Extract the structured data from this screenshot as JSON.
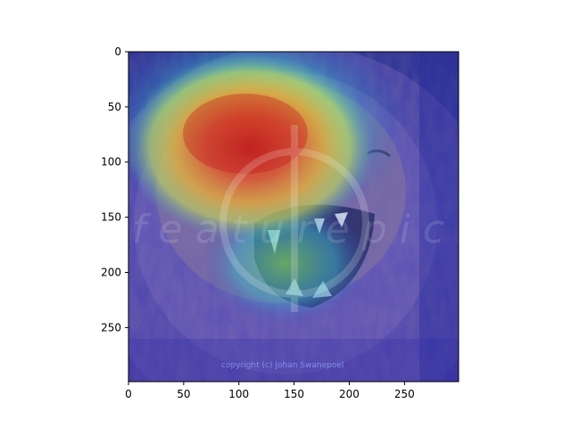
{
  "figure": {
    "image_description_icon": "lion-face-photo-icon",
    "overlay": "heatmap",
    "colormap": "jet",
    "watermark_text": "featurepics",
    "copyright_text": "copyright (c) Johan Swanepoel"
  },
  "axes": {
    "x_ticks": [
      "0",
      "50",
      "100",
      "150",
      "200",
      "250"
    ],
    "y_ticks": [
      "0",
      "50",
      "100",
      "150",
      "200",
      "250"
    ],
    "xlim": [
      0,
      299
    ],
    "ylim": [
      299,
      0
    ]
  },
  "colors": {
    "hot": "#d7191c",
    "warm": "#fdae61",
    "mid": "#ffffbf",
    "cool": "#5fb8d6",
    "cold": "#2b2f9e",
    "frame": "#000000"
  }
}
